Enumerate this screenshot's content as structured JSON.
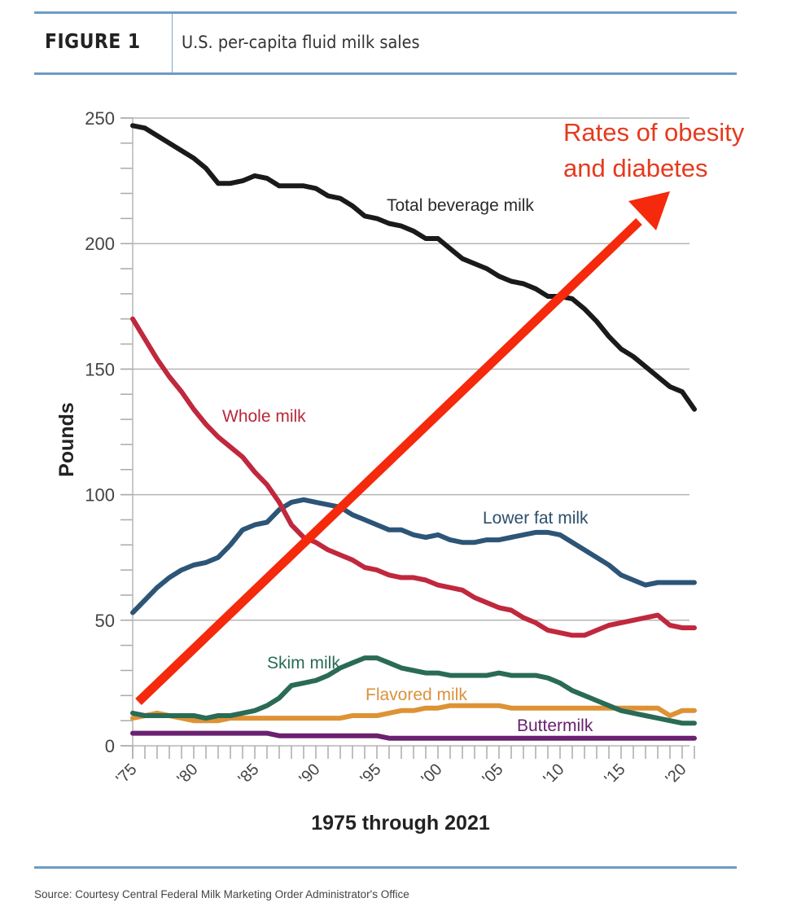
{
  "header": {
    "figure_label": "FIGURE 1",
    "title": "U.S. per-capita fluid milk sales"
  },
  "footer": {
    "source": "Source: Courtesy Central Federal Milk Marketing Order Administrator's Office"
  },
  "chart_data": {
    "type": "line",
    "title": "U.S. per-capita fluid milk sales",
    "xlabel": "1975 through 2021",
    "ylabel": "Pounds",
    "ylim": [
      0,
      250
    ],
    "xlim": [
      1975,
      2021
    ],
    "yticks": [
      0,
      50,
      100,
      150,
      200,
      250
    ],
    "yminor_step": 10,
    "grid": true,
    "xtick_labels": [
      {
        "year": 1975,
        "label": "'75"
      },
      {
        "year": 1980,
        "label": "'80"
      },
      {
        "year": 1985,
        "label": "'85"
      },
      {
        "year": 1990,
        "label": "'90"
      },
      {
        "year": 1995,
        "label": "'95"
      },
      {
        "year": 2000,
        "label": "'00"
      },
      {
        "year": 2005,
        "label": "'05"
      },
      {
        "year": 2010,
        "label": "'10"
      },
      {
        "year": 2015,
        "label": "'15"
      },
      {
        "year": 2020,
        "label": "'20"
      }
    ],
    "x": [
      1975,
      1976,
      1977,
      1978,
      1979,
      1980,
      1981,
      1982,
      1983,
      1984,
      1985,
      1986,
      1987,
      1988,
      1989,
      1990,
      1991,
      1992,
      1993,
      1994,
      1995,
      1996,
      1997,
      1998,
      1999,
      2000,
      2001,
      2002,
      2003,
      2004,
      2005,
      2006,
      2007,
      2008,
      2009,
      2010,
      2011,
      2012,
      2013,
      2014,
      2015,
      2016,
      2017,
      2018,
      2019,
      2020,
      2021
    ],
    "series": [
      {
        "name": "Total beverage milk",
        "color": "#1a1a1a",
        "values": [
          247,
          246,
          243,
          240,
          237,
          234,
          230,
          224,
          224,
          225,
          227,
          226,
          223,
          223,
          223,
          222,
          219,
          218,
          215,
          211,
          210,
          208,
          207,
          205,
          202,
          202,
          198,
          194,
          192,
          190,
          187,
          185,
          184,
          182,
          179,
          179,
          178,
          174,
          169,
          163,
          158,
          155,
          151,
          147,
          143,
          141,
          134
        ]
      },
      {
        "name": "Whole milk",
        "color": "#c0283d",
        "values": [
          170,
          162,
          154,
          147,
          141,
          134,
          128,
          123,
          119,
          115,
          109,
          104,
          97,
          88,
          83,
          81,
          78,
          76,
          74,
          71,
          70,
          68,
          67,
          67,
          66,
          64,
          63,
          62,
          59,
          57,
          55,
          54,
          51,
          49,
          46,
          45,
          44,
          44,
          46,
          48,
          49,
          50,
          51,
          52,
          48,
          47,
          47
        ]
      },
      {
        "name": "Lower fat milk",
        "color": "#2c5577",
        "values": [
          53,
          58,
          63,
          67,
          70,
          72,
          73,
          75,
          80,
          86,
          88,
          89,
          94,
          97,
          98,
          97,
          96,
          95,
          92,
          90,
          88,
          86,
          86,
          84,
          83,
          84,
          82,
          81,
          81,
          82,
          82,
          83,
          84,
          85,
          85,
          84,
          81,
          78,
          75,
          72,
          68,
          66,
          64,
          65,
          65,
          65,
          65
        ]
      },
      {
        "name": "Skim milk",
        "color": "#2a6b55",
        "values": [
          13,
          12,
          12,
          12,
          12,
          12,
          11,
          12,
          12,
          13,
          14,
          16,
          19,
          24,
          25,
          26,
          28,
          31,
          33,
          35,
          35,
          33,
          31,
          30,
          29,
          29,
          28,
          28,
          28,
          28,
          29,
          28,
          28,
          28,
          27,
          25,
          22,
          20,
          18,
          16,
          14,
          13,
          12,
          11,
          10,
          9,
          9
        ]
      },
      {
        "name": "Flavored milk",
        "color": "#de9236",
        "values": [
          11,
          12,
          13,
          12,
          11,
          10,
          10,
          10,
          11,
          11,
          11,
          11,
          11,
          11,
          11,
          11,
          11,
          11,
          12,
          12,
          12,
          13,
          14,
          14,
          15,
          15,
          16,
          16,
          16,
          16,
          16,
          15,
          15,
          15,
          15,
          15,
          15,
          15,
          15,
          15,
          15,
          15,
          15,
          15,
          12,
          14,
          14
        ]
      },
      {
        "name": "Buttermilk",
        "color": "#6a2170",
        "values": [
          5,
          5,
          5,
          5,
          5,
          5,
          5,
          5,
          5,
          5,
          5,
          5,
          4,
          4,
          4,
          4,
          4,
          4,
          4,
          4,
          4,
          3,
          3,
          3,
          3,
          3,
          3,
          3,
          3,
          3,
          3,
          3,
          3,
          3,
          3,
          3,
          3,
          3,
          3,
          3,
          3,
          3,
          3,
          3,
          3,
          3,
          3
        ]
      }
    ],
    "annotations": [
      {
        "text_lines": [
          "Rates of obesity",
          "and diabetes"
        ],
        "color": "#e63a1e",
        "kind": "arrow",
        "direction": "up-right"
      }
    ]
  }
}
